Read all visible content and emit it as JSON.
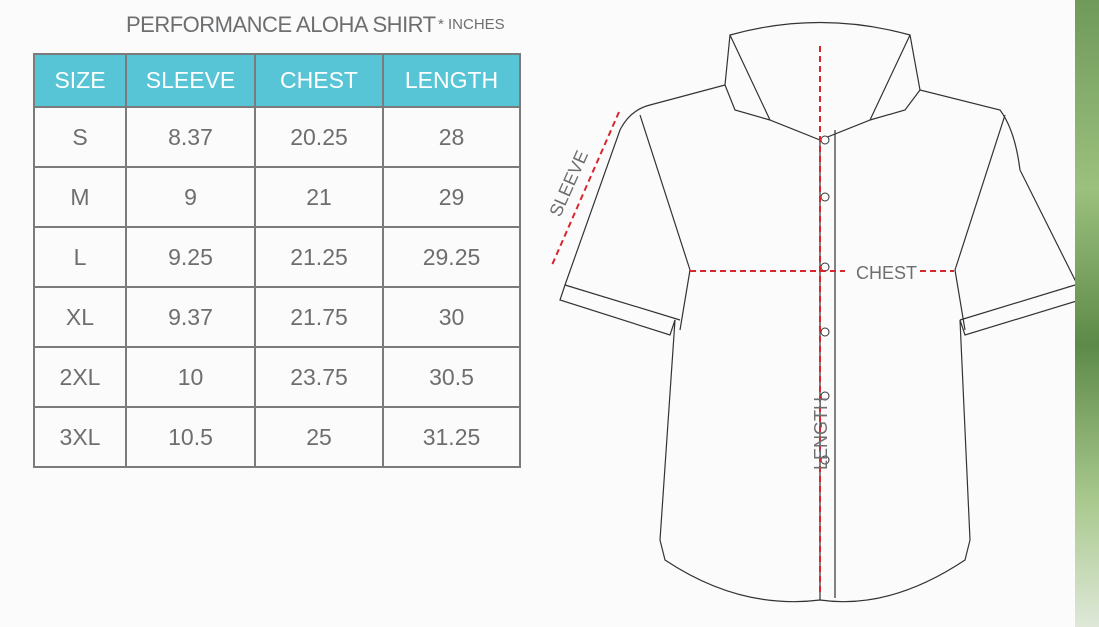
{
  "title": "PERFORMANCE ALOHA SHIRT",
  "unit_note": "* INCHES",
  "table": {
    "headers": [
      "SIZE",
      "SLEEVE",
      "CHEST",
      "LENGTH"
    ],
    "rows": [
      [
        "S",
        "8.37",
        "20.25",
        "28"
      ],
      [
        "M",
        "9",
        "21",
        "29"
      ],
      [
        "L",
        "9.25",
        "21.25",
        "29.25"
      ],
      [
        "XL",
        "9.37",
        "21.75",
        "30"
      ],
      [
        "2XL",
        "10",
        "23.75",
        "30.5"
      ],
      [
        "3XL",
        "10.5",
        "25",
        "31.25"
      ]
    ]
  },
  "diagram": {
    "sleeve_label": "SLEEVE",
    "chest_label": "CHEST",
    "length_label": "LENGTH"
  },
  "colors": {
    "header_bg": "#58c5d6",
    "measure_line": "#d7262e",
    "text": "#6d6e70"
  }
}
